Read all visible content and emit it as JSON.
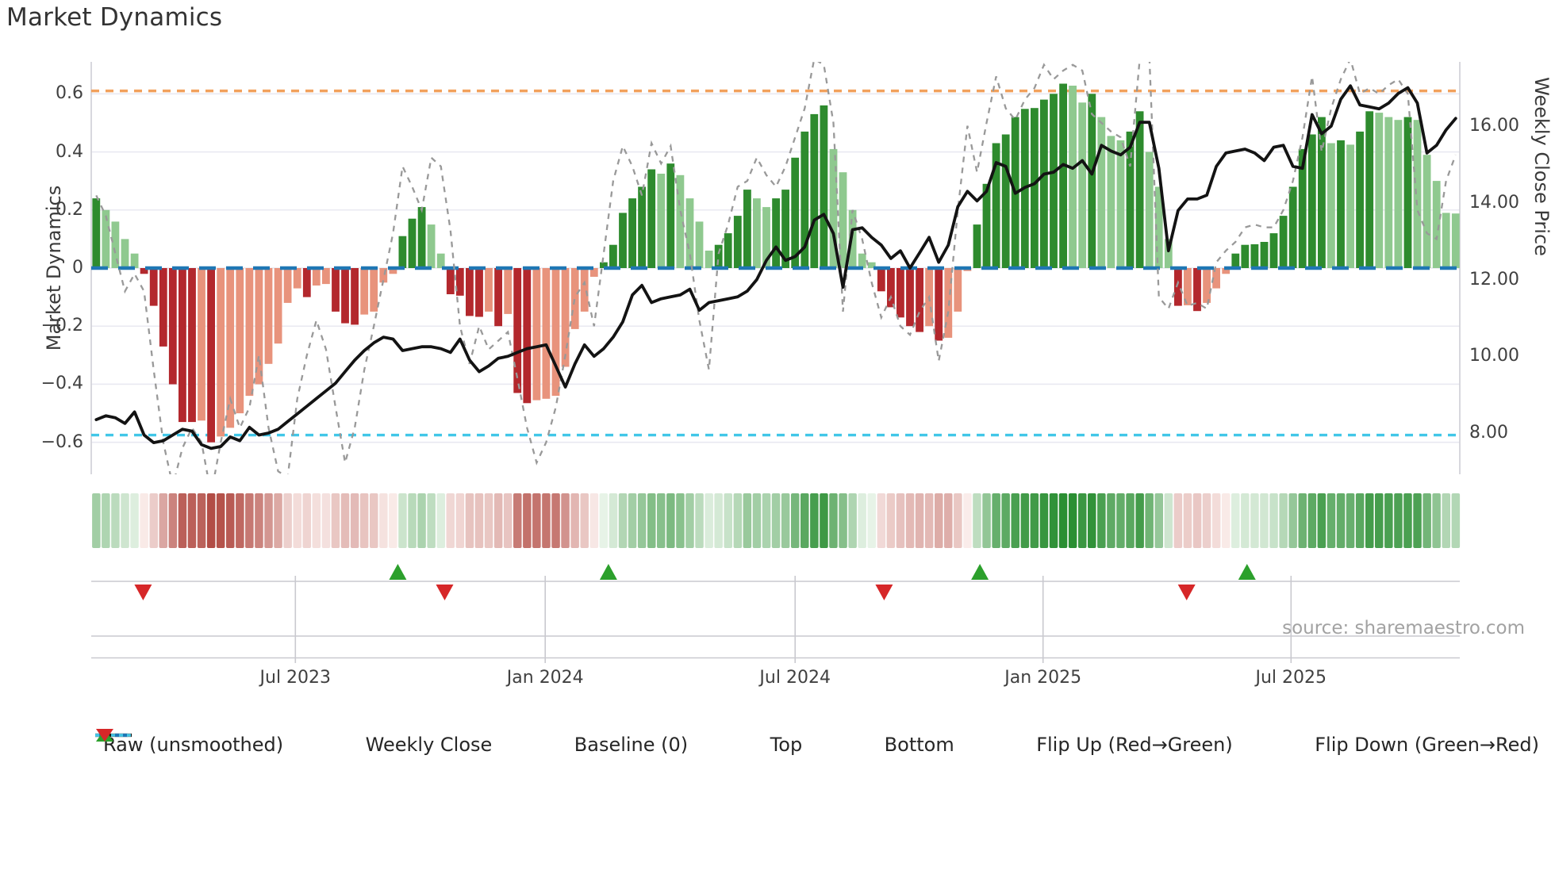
{
  "title": "Market Dynamics",
  "source_text": "source: sharemaestro.com",
  "axes": {
    "left_label": "Market Dynamics",
    "right_label": "Weekly Close Price",
    "left_ticks": [
      "0.6",
      "0.4",
      "0.2",
      "0",
      "−0.2",
      "−0.4",
      "−0.6"
    ],
    "left_tick_values": [
      0.6,
      0.4,
      0.2,
      0,
      -0.2,
      -0.4,
      -0.6
    ],
    "right_ticks": [
      "16.00",
      "14.00",
      "12.00",
      "10.00",
      "8.00"
    ],
    "right_tick_values": [
      16,
      14,
      12,
      10,
      8
    ],
    "x_ticks": [
      "Jul 2023",
      "Jan 2024",
      "Jul 2024",
      "Jan 2025",
      "Jul 2025"
    ],
    "x_tick_weeks": [
      20.8,
      46.9,
      73.0,
      98.9,
      124.8
    ],
    "ylim_left": [
      -0.71,
      0.71
    ],
    "ylim_right": [
      6.9,
      17.7
    ],
    "grid": "horizontal-only"
  },
  "legend": [
    {
      "label": "Raw (unsmoothed)",
      "swatch": "dashed-line",
      "color": "#999999"
    },
    {
      "label": "Weekly Close",
      "swatch": "solid-line",
      "color": "#131313"
    },
    {
      "label": "Baseline (0)",
      "swatch": "long-dash-line",
      "color": "#1f77b4"
    },
    {
      "label": "Top",
      "swatch": "dotted-line",
      "color": "#f2a15c"
    },
    {
      "label": "Bottom",
      "swatch": "dotted-line",
      "color": "#41c7e8"
    },
    {
      "label": "Flip Up (Red→Green)",
      "swatch": "triangle-up",
      "color": "#2ca02c"
    },
    {
      "label": "Flip Down (Green→Red)",
      "swatch": "triangle-down",
      "color": "#d62728"
    }
  ],
  "colors": {
    "bar_green_dark": "#2e8b2e",
    "bar_green_light": "#8fc98f",
    "bar_red_dark": "#b3282d",
    "bar_red_light": "#e8937c",
    "close_line": "#131313",
    "raw_line": "#999999",
    "baseline": "#1f77b4",
    "top_line": "#f2a15c",
    "bottom_line": "#41c7e8",
    "flip_up": "#2ca02c",
    "flip_down": "#d62728",
    "grid": "#e9e9f1",
    "spine": "#cfcfd6",
    "subaxis": "#c9c9cf",
    "heat_green_hi": "#2b8f33",
    "heat_green_lo": "#edf6ed",
    "heat_red_hi": "#b04840",
    "heat_red_lo": "#fbefed"
  },
  "chart_data": {
    "type": "combo",
    "x_unit": "week",
    "n_points": 143,
    "title": "Market Dynamics",
    "reference_lines": {
      "baseline": 0,
      "top": 0.61,
      "bottom": -0.575
    },
    "flip_up_weeks": [
      31.5,
      53.5,
      92.3,
      120.2
    ],
    "flip_down_weeks": [
      4.9,
      36.4,
      82.3,
      113.9
    ],
    "series": [
      {
        "name": "Market Dynamics",
        "type": "bar",
        "axis": "left",
        "values": [
          0.24,
          0.2,
          0.16,
          0.1,
          0.05,
          -0.02,
          -0.13,
          -0.27,
          -0.4,
          -0.53,
          -0.53,
          -0.525,
          -0.6,
          -0.58,
          -0.55,
          -0.5,
          -0.44,
          -0.4,
          -0.33,
          -0.26,
          -0.12,
          -0.07,
          -0.1,
          -0.06,
          -0.055,
          -0.15,
          -0.19,
          -0.195,
          -0.16,
          -0.15,
          -0.05,
          -0.02,
          0.11,
          0.17,
          0.21,
          0.15,
          0.05,
          -0.09,
          -0.095,
          -0.165,
          -0.168,
          -0.15,
          -0.2,
          -0.158,
          -0.43,
          -0.465,
          -0.455,
          -0.45,
          -0.44,
          -0.34,
          -0.21,
          -0.15,
          -0.03,
          0.02,
          0.08,
          0.19,
          0.24,
          0.28,
          0.34,
          0.325,
          0.36,
          0.32,
          0.24,
          0.16,
          0.06,
          0.08,
          0.12,
          0.18,
          0.27,
          0.24,
          0.21,
          0.24,
          0.27,
          0.38,
          0.47,
          0.53,
          0.56,
          0.41,
          0.33,
          0.2,
          0.05,
          0.02,
          -0.08,
          -0.135,
          -0.17,
          -0.2,
          -0.22,
          -0.2,
          -0.25,
          -0.24,
          -0.15,
          -0.01,
          0.15,
          0.29,
          0.43,
          0.46,
          0.52,
          0.548,
          0.551,
          0.58,
          0.6,
          0.635,
          0.628,
          0.57,
          0.6,
          0.52,
          0.455,
          0.44,
          0.47,
          0.54,
          0.4,
          0.28,
          0.1,
          -0.13,
          -0.128,
          -0.148,
          -0.12,
          -0.07,
          -0.02,
          0.05,
          0.08,
          0.082,
          0.09,
          0.12,
          0.18,
          0.28,
          0.41,
          0.46,
          0.52,
          0.43,
          0.44,
          0.425,
          0.47,
          0.54,
          0.535,
          0.52,
          0.51,
          0.52,
          0.51,
          0.39,
          0.3,
          0.19,
          0.188
        ]
      },
      {
        "name": "Weekly Close",
        "type": "line",
        "axis": "right",
        "values": [
          8.35,
          8.45,
          8.4,
          8.25,
          8.55,
          7.95,
          7.75,
          7.8,
          7.95,
          8.1,
          8.05,
          7.7,
          7.6,
          7.65,
          7.9,
          7.8,
          8.15,
          7.95,
          8.0,
          8.1,
          8.3,
          8.5,
          8.7,
          8.9,
          9.1,
          9.3,
          9.6,
          9.9,
          10.15,
          10.35,
          10.5,
          10.45,
          10.15,
          10.2,
          10.25,
          10.25,
          10.2,
          10.1,
          10.45,
          9.9,
          9.6,
          9.75,
          9.95,
          10.0,
          10.1,
          10.2,
          10.25,
          10.3,
          9.75,
          9.2,
          9.8,
          10.3,
          10.0,
          10.2,
          10.5,
          10.9,
          11.6,
          11.85,
          11.4,
          11.5,
          11.55,
          11.6,
          11.75,
          11.2,
          11.4,
          11.45,
          11.5,
          11.55,
          11.7,
          12.0,
          12.5,
          12.85,
          12.5,
          12.6,
          12.85,
          13.55,
          13.7,
          13.2,
          11.8,
          13.3,
          13.35,
          13.1,
          12.9,
          12.55,
          12.75,
          12.3,
          12.7,
          13.1,
          12.45,
          12.9,
          13.9,
          14.3,
          14.05,
          14.3,
          15.05,
          14.95,
          14.25,
          14.4,
          14.5,
          14.75,
          14.8,
          15.0,
          14.9,
          15.1,
          14.75,
          15.5,
          15.35,
          15.25,
          15.45,
          16.1,
          16.1,
          14.9,
          12.75,
          13.8,
          14.1,
          14.1,
          14.2,
          14.95,
          15.3,
          15.35,
          15.4,
          15.3,
          15.1,
          15.45,
          15.5,
          14.95,
          14.9,
          16.3,
          15.8,
          16.0,
          16.7,
          17.05,
          16.55,
          16.5,
          16.45,
          16.6,
          16.85,
          17.0,
          16.6,
          15.3,
          15.5,
          15.9,
          16.2
        ]
      },
      {
        "name": "Raw (unsmoothed)",
        "type": "line",
        "axis": "left",
        "values": [
          0.25,
          0.18,
          0.05,
          -0.08,
          -0.02,
          -0.08,
          -0.35,
          -0.6,
          -0.75,
          -0.62,
          -0.55,
          -0.6,
          -0.78,
          -0.6,
          -0.45,
          -0.55,
          -0.48,
          -0.3,
          -0.55,
          -0.7,
          -0.72,
          -0.45,
          -0.3,
          -0.18,
          -0.28,
          -0.48,
          -0.67,
          -0.55,
          -0.35,
          -0.2,
          -0.04,
          0.12,
          0.35,
          0.28,
          0.2,
          0.38,
          0.35,
          0.13,
          -0.2,
          -0.33,
          -0.2,
          -0.28,
          -0.25,
          -0.22,
          -0.38,
          -0.55,
          -0.67,
          -0.6,
          -0.48,
          -0.3,
          -0.1,
          -0.05,
          -0.2,
          0.05,
          0.3,
          0.42,
          0.35,
          0.25,
          0.43,
          0.36,
          0.42,
          0.2,
          0.05,
          -0.18,
          -0.35,
          0.05,
          0.15,
          0.28,
          0.3,
          0.38,
          0.32,
          0.28,
          0.35,
          0.45,
          0.55,
          0.72,
          0.7,
          0.5,
          -0.15,
          0.2,
          0.1,
          -0.05,
          -0.17,
          -0.1,
          -0.2,
          -0.23,
          -0.15,
          -0.1,
          -0.32,
          -0.15,
          0.2,
          0.49,
          0.33,
          0.5,
          0.66,
          0.55,
          0.51,
          0.58,
          0.62,
          0.7,
          0.65,
          0.68,
          0.7,
          0.68,
          0.53,
          0.5,
          0.47,
          0.45,
          0.35,
          0.72,
          0.73,
          -0.1,
          -0.14,
          -0.05,
          -0.13,
          -0.12,
          -0.14,
          0.02,
          0.06,
          0.09,
          0.14,
          0.15,
          0.14,
          0.14,
          0.2,
          0.3,
          0.45,
          0.66,
          0.4,
          0.55,
          0.65,
          0.72,
          0.6,
          0.62,
          0.6,
          0.63,
          0.65,
          0.6,
          0.2,
          0.12,
          0.1,
          0.3,
          0.39
        ]
      }
    ],
    "heatmap_strip": {
      "derived_from": "Market Dynamics bar values",
      "rows": 1
    }
  }
}
